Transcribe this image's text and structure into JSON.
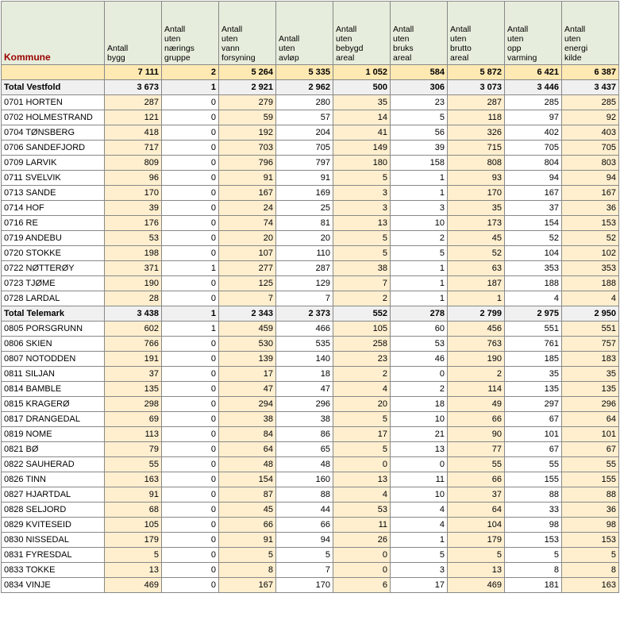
{
  "headers": [
    "Kommune",
    "Antall bygg",
    "Antall uten nærings gruppe",
    "Antall uten vann forsyning",
    "Antall uten avløp",
    "Antall uten bebygd areal",
    "Antall uten bruks areal",
    "Antall uten brutto areal",
    "Antall uten opp varming",
    "Antall uten energi kilde"
  ],
  "rows": [
    {
      "type": "grand",
      "cells": [
        "",
        "7 111",
        "2",
        "5 264",
        "5 335",
        "1 052",
        "584",
        "5 872",
        "6 421",
        "6 387"
      ]
    },
    {
      "type": "subtotal",
      "cells": [
        "Total Vestfold",
        "3 673",
        "1",
        "2 921",
        "2 962",
        "500",
        "306",
        "3 073",
        "3 446",
        "3 437"
      ]
    },
    {
      "type": "data",
      "cells": [
        "0701 HORTEN",
        "287",
        "0",
        "279",
        "280",
        "35",
        "23",
        "287",
        "285",
        "285"
      ]
    },
    {
      "type": "data",
      "cells": [
        "0702 HOLMESTRAND",
        "121",
        "0",
        "59",
        "57",
        "14",
        "5",
        "118",
        "97",
        "92"
      ]
    },
    {
      "type": "data",
      "cells": [
        "0704 TØNSBERG",
        "418",
        "0",
        "192",
        "204",
        "41",
        "56",
        "326",
        "402",
        "403"
      ]
    },
    {
      "type": "data",
      "cells": [
        "0706 SANDEFJORD",
        "717",
        "0",
        "703",
        "705",
        "149",
        "39",
        "715",
        "705",
        "705"
      ]
    },
    {
      "type": "data",
      "cells": [
        "0709 LARVIK",
        "809",
        "0",
        "796",
        "797",
        "180",
        "158",
        "808",
        "804",
        "803"
      ]
    },
    {
      "type": "data",
      "cells": [
        "0711 SVELVIK",
        "96",
        "0",
        "91",
        "91",
        "5",
        "1",
        "93",
        "94",
        "94"
      ]
    },
    {
      "type": "data",
      "cells": [
        "0713 SANDE",
        "170",
        "0",
        "167",
        "169",
        "3",
        "1",
        "170",
        "167",
        "167"
      ]
    },
    {
      "type": "data",
      "cells": [
        "0714 HOF",
        "39",
        "0",
        "24",
        "25",
        "3",
        "3",
        "35",
        "37",
        "36"
      ]
    },
    {
      "type": "data",
      "cells": [
        "0716 RE",
        "176",
        "0",
        "74",
        "81",
        "13",
        "10",
        "173",
        "154",
        "153"
      ]
    },
    {
      "type": "data",
      "cells": [
        "0719 ANDEBU",
        "53",
        "0",
        "20",
        "20",
        "5",
        "2",
        "45",
        "52",
        "52"
      ]
    },
    {
      "type": "data",
      "cells": [
        "0720 STOKKE",
        "198",
        "0",
        "107",
        "110",
        "5",
        "5",
        "52",
        "104",
        "102"
      ]
    },
    {
      "type": "data",
      "cells": [
        "0722 NØTTERØY",
        "371",
        "1",
        "277",
        "287",
        "38",
        "1",
        "63",
        "353",
        "353"
      ]
    },
    {
      "type": "data",
      "cells": [
        "0723 TJØME",
        "190",
        "0",
        "125",
        "129",
        "7",
        "1",
        "187",
        "188",
        "188"
      ]
    },
    {
      "type": "data",
      "cells": [
        "0728 LARDAL",
        "28",
        "0",
        "7",
        "7",
        "2",
        "1",
        "1",
        "4",
        "4"
      ]
    },
    {
      "type": "subtotal",
      "cells": [
        "Total Telemark",
        "3 438",
        "1",
        "2 343",
        "2 373",
        "552",
        "278",
        "2 799",
        "2 975",
        "2 950"
      ]
    },
    {
      "type": "data",
      "cells": [
        "0805 PORSGRUNN",
        "602",
        "1",
        "459",
        "466",
        "105",
        "60",
        "456",
        "551",
        "551"
      ]
    },
    {
      "type": "data",
      "cells": [
        "0806 SKIEN",
        "766",
        "0",
        "530",
        "535",
        "258",
        "53",
        "763",
        "761",
        "757"
      ]
    },
    {
      "type": "data",
      "cells": [
        "0807 NOTODDEN",
        "191",
        "0",
        "139",
        "140",
        "23",
        "46",
        "190",
        "185",
        "183"
      ]
    },
    {
      "type": "data",
      "cells": [
        "0811 SILJAN",
        "37",
        "0",
        "17",
        "18",
        "2",
        "0",
        "2",
        "35",
        "35"
      ]
    },
    {
      "type": "data",
      "cells": [
        "0814 BAMBLE",
        "135",
        "0",
        "47",
        "47",
        "4",
        "2",
        "114",
        "135",
        "135"
      ]
    },
    {
      "type": "data",
      "cells": [
        "0815 KRAGERØ",
        "298",
        "0",
        "294",
        "296",
        "20",
        "18",
        "49",
        "297",
        "296"
      ]
    },
    {
      "type": "data",
      "cells": [
        "0817 DRANGEDAL",
        "69",
        "0",
        "38",
        "38",
        "5",
        "10",
        "66",
        "67",
        "64"
      ]
    },
    {
      "type": "data",
      "cells": [
        "0819 NOME",
        "113",
        "0",
        "84",
        "86",
        "17",
        "21",
        "90",
        "101",
        "101"
      ]
    },
    {
      "type": "data",
      "cells": [
        "0821 BØ",
        "79",
        "0",
        "64",
        "65",
        "5",
        "13",
        "77",
        "67",
        "67"
      ]
    },
    {
      "type": "data",
      "cells": [
        "0822 SAUHERAD",
        "55",
        "0",
        "48",
        "48",
        "0",
        "0",
        "55",
        "55",
        "55"
      ]
    },
    {
      "type": "data",
      "cells": [
        "0826 TINN",
        "163",
        "0",
        "154",
        "160",
        "13",
        "11",
        "66",
        "155",
        "155"
      ]
    },
    {
      "type": "data",
      "cells": [
        "0827 HJARTDAL",
        "91",
        "0",
        "87",
        "88",
        "4",
        "10",
        "37",
        "88",
        "88"
      ]
    },
    {
      "type": "data",
      "cells": [
        "0828 SELJORD",
        "68",
        "0",
        "45",
        "44",
        "53",
        "4",
        "64",
        "33",
        "36"
      ]
    },
    {
      "type": "data",
      "cells": [
        "0829 KVITESEID",
        "105",
        "0",
        "66",
        "66",
        "11",
        "4",
        "104",
        "98",
        "98"
      ]
    },
    {
      "type": "data",
      "cells": [
        "0830 NISSEDAL",
        "179",
        "0",
        "91",
        "94",
        "26",
        "1",
        "179",
        "153",
        "153"
      ]
    },
    {
      "type": "data",
      "cells": [
        "0831 FYRESDAL",
        "5",
        "0",
        "5",
        "5",
        "0",
        "5",
        "5",
        "5",
        "5"
      ]
    },
    {
      "type": "data",
      "cells": [
        "0833 TOKKE",
        "13",
        "0",
        "8",
        "7",
        "0",
        "3",
        "13",
        "8",
        "8"
      ]
    },
    {
      "type": "data",
      "cells": [
        "0834 VINJE",
        "469",
        "0",
        "167",
        "170",
        "6",
        "17",
        "469",
        "181",
        "163"
      ]
    }
  ],
  "colors": {
    "header_bg": "#e6eddc",
    "header_label": "#990000",
    "grand_bg": "#ffe9b3",
    "subtotal_bg": "#f0f0f0",
    "alt_bg": "#ffefcf",
    "plain_bg": "#ffffff",
    "border": "#888888"
  }
}
